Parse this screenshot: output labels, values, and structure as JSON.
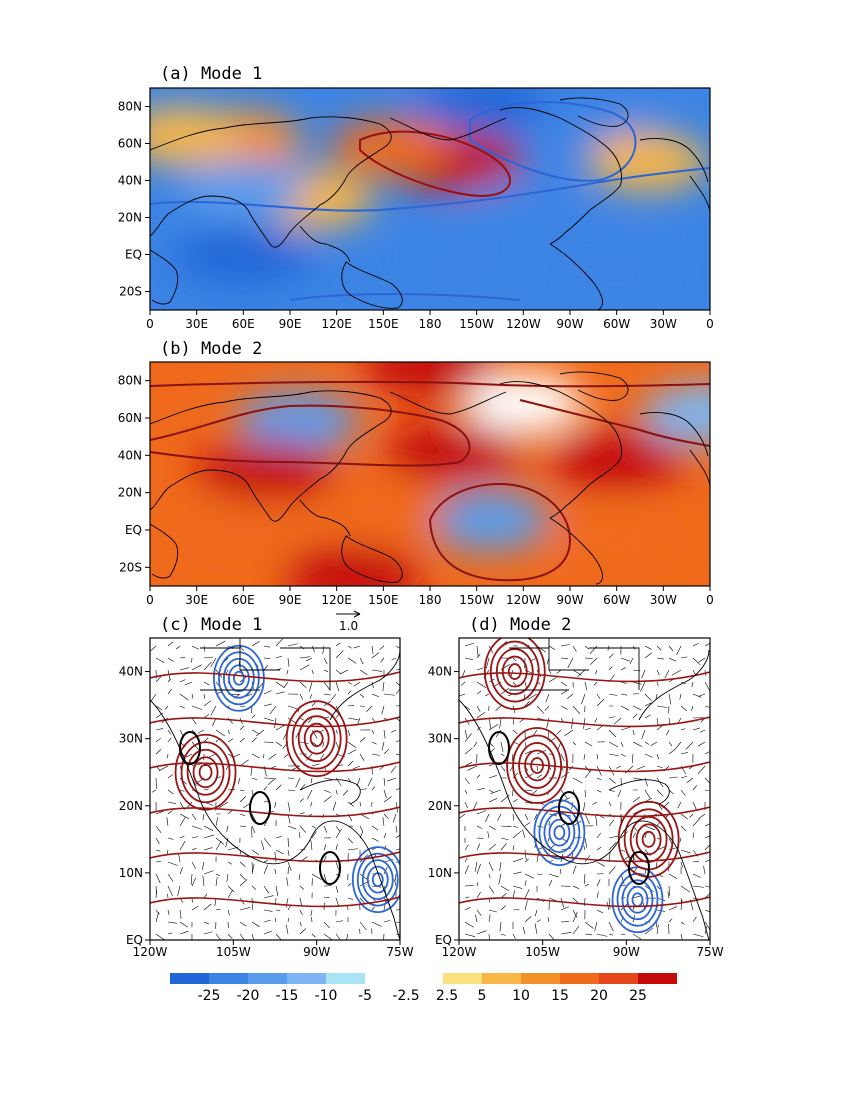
{
  "palette": {
    "neg": [
      "#2068d8",
      "#3c84e4",
      "#5a9cec",
      "#7cb6f2",
      "#a9e4f4"
    ],
    "white": "#ffffff",
    "pos": [
      "#fbe07e",
      "#f7b646",
      "#f4902a",
      "#ef6a1c",
      "#e5461a",
      "#c40a0a"
    ],
    "land": "#000000"
  },
  "chart_data": [
    {
      "type": "heatmap",
      "panel": "a",
      "title": "(a) Mode 1",
      "x_ticks": [
        "0",
        "30E",
        "60E",
        "90E",
        "120E",
        "150E",
        "180",
        "150W",
        "120W",
        "90W",
        "60W",
        "30W",
        "0"
      ],
      "y_ticks": [
        "80N",
        "60N",
        "40N",
        "20N",
        "EQ",
        "20S"
      ],
      "lon_range": [
        0,
        360
      ],
      "lat_range": [
        -30,
        90
      ],
      "fields": [
        {
          "lon": 215,
          "lat": 80,
          "value": -22
        },
        {
          "lon": 285,
          "lat": 72,
          "value": -18
        },
        {
          "lon": 195,
          "lat": 50,
          "value": 26
        },
        {
          "lon": 155,
          "lat": 58,
          "value": 18
        },
        {
          "lon": 60,
          "lat": 62,
          "value": 12
        },
        {
          "lon": 20,
          "lat": 64,
          "value": 8
        },
        {
          "lon": 105,
          "lat": 30,
          "value": 8
        },
        {
          "lon": 320,
          "lat": 50,
          "value": 6
        },
        {
          "lon": 60,
          "lat": 35,
          "value": -12
        },
        {
          "lon": 240,
          "lat": 25,
          "value": -18
        },
        {
          "lon": 60,
          "lat": 0,
          "value": -22
        },
        {
          "lon": 200,
          "lat": -5,
          "value": -18
        },
        {
          "lon": 300,
          "lat": -10,
          "value": -15
        }
      ]
    },
    {
      "type": "heatmap",
      "panel": "b",
      "title": "(b) Mode 2",
      "x_ticks": [
        "0",
        "30E",
        "60E",
        "90E",
        "120E",
        "150E",
        "180",
        "150W",
        "120W",
        "90W",
        "60W",
        "30W",
        "0"
      ],
      "y_ticks": [
        "80N",
        "60N",
        "40N",
        "20N",
        "EQ",
        "20S"
      ],
      "lon_range": [
        0,
        360
      ],
      "lat_range": [
        -30,
        90
      ],
      "fields": [
        {
          "lon": 180,
          "lat": 88,
          "value": 30
        },
        {
          "lon": 95,
          "lat": 58,
          "value": -12
        },
        {
          "lon": 355,
          "lat": 62,
          "value": -5
        },
        {
          "lon": 240,
          "lat": 68,
          "value": 2
        },
        {
          "lon": 218,
          "lat": 5,
          "value": -12
        },
        {
          "lon": 75,
          "lat": 32,
          "value": 28
        },
        {
          "lon": 195,
          "lat": 42,
          "value": 25
        },
        {
          "lon": 300,
          "lat": 38,
          "value": 25
        },
        {
          "lon": 130,
          "lat": -25,
          "value": 26
        },
        {
          "lon": 60,
          "lat": 0,
          "value": 16
        },
        {
          "lon": 150,
          "lat": 10,
          "value": 16
        },
        {
          "lon": 300,
          "lat": -5,
          "value": 17
        }
      ]
    },
    {
      "type": "line",
      "panel": "c",
      "title": "(c) Mode 1",
      "vector_scale_label": "1.0",
      "x_ticks": [
        "120W",
        "105W",
        "90W",
        "75W"
      ],
      "y_ticks": [
        "40N",
        "30N",
        "20N",
        "10N",
        "EQ"
      ],
      "lon_range": [
        -120,
        -75
      ],
      "lat_range": [
        0,
        45
      ],
      "negative_centers": [
        {
          "lon": -104,
          "lat": 39
        },
        {
          "lon": -79,
          "lat": 9
        }
      ],
      "positive_centers": [
        {
          "lon": -110,
          "lat": 25
        },
        {
          "lon": -90,
          "lat": 30
        }
      ]
    },
    {
      "type": "line",
      "panel": "d",
      "title": "(d) Mode 2",
      "x_ticks": [
        "120W",
        "105W",
        "90W",
        "75W"
      ],
      "y_ticks": [
        "40N",
        "30N",
        "20N",
        "10N",
        "EQ"
      ],
      "lon_range": [
        -120,
        -75
      ],
      "lat_range": [
        0,
        45
      ],
      "negative_centers": [
        {
          "lon": -102,
          "lat": 16
        },
        {
          "lon": -88,
          "lat": 6
        }
      ],
      "positive_centers": [
        {
          "lon": -106,
          "lat": 26
        },
        {
          "lon": -86,
          "lat": 15
        },
        {
          "lon": -110,
          "lat": 40
        }
      ]
    }
  ],
  "colorbar": {
    "neg_labels": [
      "-25",
      "-20",
      "-15",
      "-10",
      "-5",
      "-2.5"
    ],
    "pos_labels": [
      "2.5",
      "5",
      "10",
      "15",
      "20",
      "25"
    ]
  }
}
